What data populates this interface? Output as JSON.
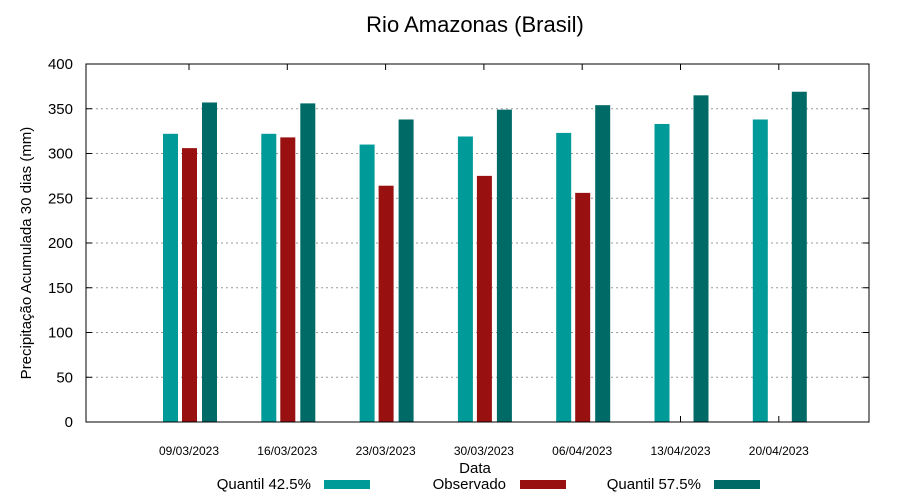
{
  "chart_data": {
    "type": "bar",
    "title": "Rio Amazonas (Brasil)",
    "xlabel": "Data",
    "ylabel": "Precipitação Acumulada 30 dias (mm)",
    "ylim": [
      0,
      400
    ],
    "yticks": [
      0,
      50,
      100,
      150,
      200,
      250,
      300,
      350,
      400
    ],
    "grid": true,
    "legend_position": "bottom",
    "categories": [
      "09/03/2023",
      "16/03/2023",
      "23/03/2023",
      "30/03/2023",
      "06/04/2023",
      "13/04/2023",
      "20/04/2023"
    ],
    "series": [
      {
        "name": "Quantil 42.5%",
        "color": "#009b99",
        "values": [
          322,
          322,
          310,
          319,
          323,
          333,
          338
        ]
      },
      {
        "name": "Observado",
        "color": "#981010",
        "values": [
          306,
          318,
          264,
          275,
          256,
          null,
          null
        ]
      },
      {
        "name": "Quantil 57.5%",
        "color": "#006b66",
        "values": [
          357,
          356,
          338,
          349,
          354,
          365,
          369
        ]
      }
    ]
  }
}
